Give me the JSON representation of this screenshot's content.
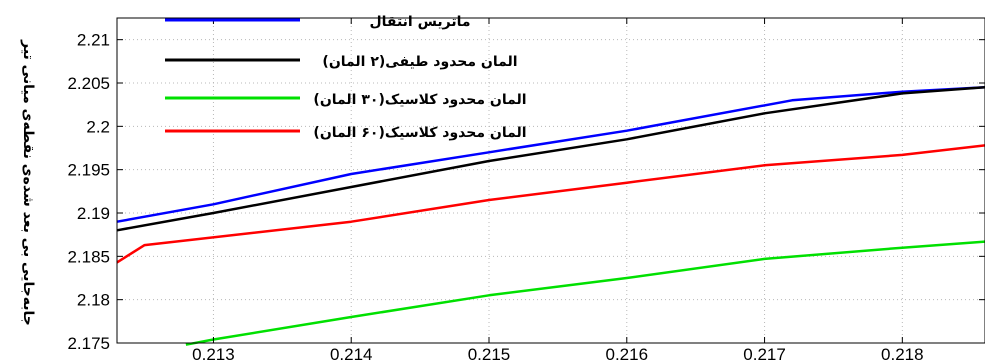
{
  "chart_data": {
    "type": "line",
    "title": "",
    "xlabel": "",
    "ylabel": "جابه‌جایی بی بعد شده‌ی نقطه‌ی میانی تیر",
    "xlim": [
      0.2123,
      0.2186
    ],
    "ylim": [
      2.175,
      2.2125
    ],
    "xticks": [
      "0.213",
      "0.214",
      "0.215",
      "0.216",
      "0.217",
      "0.218"
    ],
    "xtick_values": [
      0.213,
      0.214,
      0.215,
      0.216,
      0.217,
      0.218
    ],
    "yticks": [
      "2.175",
      "2.18",
      "2.185",
      "2.19",
      "2.195",
      "2.2",
      "2.205",
      "2.21"
    ],
    "ytick_values": [
      2.175,
      2.18,
      2.185,
      2.19,
      2.195,
      2.2,
      2.205,
      2.21
    ],
    "grid": true,
    "legend_position": "top-left",
    "series": [
      {
        "name": "ماتریس انتقال",
        "color": "#0000ff",
        "x": [
          0.2123,
          0.213,
          0.214,
          0.215,
          0.216,
          0.2172,
          0.218,
          0.2186
        ],
        "y": [
          2.189,
          2.191,
          2.1945,
          2.197,
          2.1995,
          2.203,
          2.204,
          2.2045
        ]
      },
      {
        "name": "المان محدود طیفی(۲ المان)",
        "color": "#000000",
        "x": [
          0.2123,
          0.213,
          0.214,
          0.215,
          0.216,
          0.217,
          0.218,
          0.2186
        ],
        "y": [
          2.188,
          2.19,
          2.193,
          2.196,
          2.1985,
          2.2015,
          2.2038,
          2.2045
        ]
      },
      {
        "name": "المان محدود کلاسیک(۳۰ المان)",
        "color": "#00e000",
        "x": [
          0.2128,
          0.213,
          0.214,
          0.215,
          0.216,
          0.217,
          0.218,
          0.2186
        ],
        "y": [
          2.1748,
          2.1754,
          2.178,
          2.1805,
          2.1825,
          2.1847,
          2.186,
          2.1867
        ]
      },
      {
        "name": "المان محدود کلاسیک(۶۰ المان)",
        "color": "#ff0000",
        "x": [
          0.2123,
          0.2125,
          0.214,
          0.215,
          0.216,
          0.217,
          0.218,
          0.2186
        ],
        "y": [
          2.1843,
          2.1863,
          2.189,
          2.1915,
          2.1935,
          2.1955,
          2.1967,
          2.1978
        ]
      }
    ]
  }
}
